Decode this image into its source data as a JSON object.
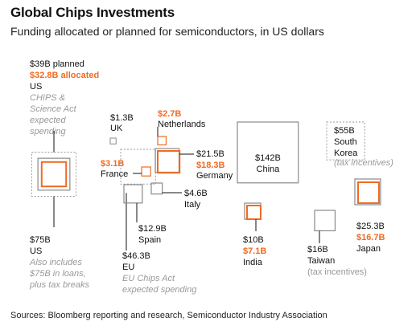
{
  "header": {
    "title": "Global Chips Investments",
    "subtitle": "Funding allocated or planned for semiconductors, in US dollars"
  },
  "footer": {
    "source": "Sources: Bloomberg reporting and research, Semiconductor Industry Association"
  },
  "colors": {
    "planned": "#8a8a8a",
    "allocated": "#f26a21",
    "dotted": "#9a9a9a",
    "note": "#999999",
    "text": "#111111"
  },
  "chart_data": {
    "type": "proportional-square",
    "units": "US dollars (billions)",
    "items": [
      {
        "country": "US",
        "planned": "$39B planned",
        "allocated": "$32.8B allocated",
        "note": "CHIPS & Science Act expected spending",
        "planned_value": 39,
        "allocated_value": 32.8
      },
      {
        "country": "US",
        "value_label": "$75B",
        "note": "Also includes $75B in loans, plus tax breaks",
        "value": 75
      },
      {
        "country": "UK",
        "value_label": "$1.3B",
        "value": 1.3
      },
      {
        "country": "Netherlands",
        "value_label": "$2.7B",
        "value": 2.7,
        "color": "allocated"
      },
      {
        "country": "France",
        "value_label": "$3.1B",
        "value": 3.1,
        "color": "allocated"
      },
      {
        "country": "Germany",
        "planned": "$21.5B",
        "allocated": "$18.3B",
        "planned_value": 21.5,
        "allocated_value": 18.3
      },
      {
        "country": "Italy",
        "value_label": "$4.6B",
        "value": 4.6
      },
      {
        "country": "Spain",
        "value_label": "$12.9B",
        "value": 12.9
      },
      {
        "country": "EU",
        "value_label": "$46.3B",
        "note": "EU Chips Act expected spending",
        "value": 46.3
      },
      {
        "country": "China",
        "value_label": "$142B",
        "value": 142
      },
      {
        "country": "South Korea",
        "value_label": "$55B",
        "note": "(tax incentives)",
        "value": 55
      },
      {
        "country": "India",
        "planned": "$10B",
        "allocated": "$7.1B",
        "planned_value": 10,
        "allocated_value": 7.1
      },
      {
        "country": "Taiwan",
        "value_label": "$16B",
        "note": "(tax incentives)",
        "value": 16
      },
      {
        "country": "Japan",
        "planned": "$25.3B",
        "allocated": "$16.7B",
        "planned_value": 25.3,
        "allocated_value": 16.7
      }
    ]
  }
}
